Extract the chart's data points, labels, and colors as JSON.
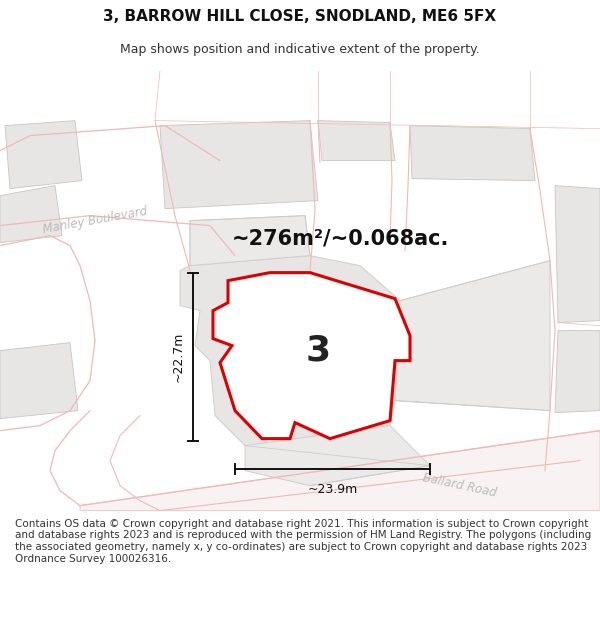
{
  "title": "3, BARROW HILL CLOSE, SNODLAND, ME6 5FX",
  "subtitle": "Map shows position and indicative extent of the property.",
  "footer": "Contains OS data © Crown copyright and database right 2021. This information is subject to Crown copyright and database rights 2023 and is reproduced with the permission of HM Land Registry. The polygons (including the associated geometry, namely x, y co-ordinates) are subject to Crown copyright and database rights 2023 Ordnance Survey 100026316.",
  "area_label": "~276m²/~0.068ac.",
  "width_label": "~23.9m",
  "height_label": "~22.7m",
  "property_number": "3",
  "bg_color": "#f5f4f2",
  "highlight_color": "#dd0000",
  "road_color": "#f0b8b8",
  "building_color": "#e8e6e4",
  "building_outline": "#c8c6c4",
  "title_fontsize": 11,
  "subtitle_fontsize": 9,
  "footer_fontsize": 7.5
}
